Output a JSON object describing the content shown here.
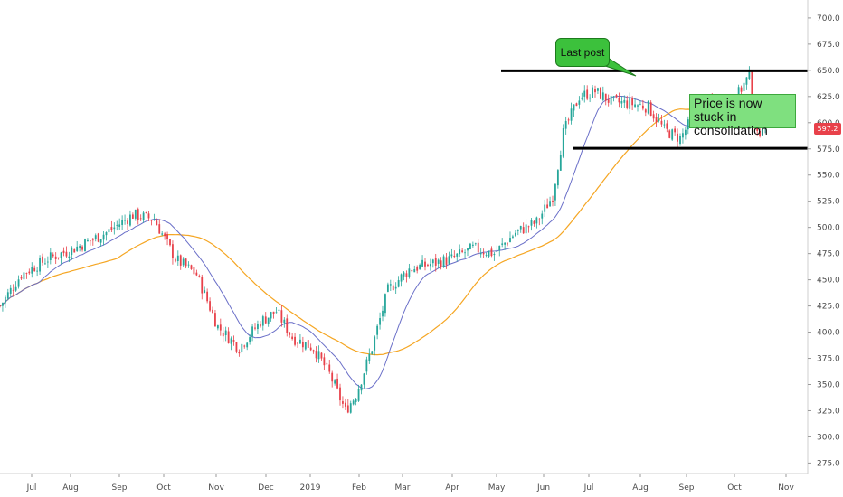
{
  "chart_data": {
    "type": "candlestick",
    "title": "",
    "ylim": [
      265,
      712
    ],
    "y_ticks": [
      "275.0",
      "300.0",
      "325.0",
      "350.0",
      "375.0",
      "400.0",
      "425.0",
      "450.0",
      "475.0",
      "500.0",
      "525.0",
      "550.0",
      "575.0",
      "600.0",
      "625.0",
      "650.0",
      "675.0",
      "700.0"
    ],
    "x_ticks": [
      "Jul",
      "Aug",
      "Sep",
      "Oct",
      "Nov",
      "Dec",
      "2019",
      "Feb",
      "Mar",
      "Apr",
      "May",
      "Jun",
      "Jul",
      "Aug",
      "Sep",
      "Oct",
      "Nov"
    ],
    "last_price": "597.2",
    "series": [
      {
        "name": "",
        "color": "#6a6fc8",
        "kind": "moving-average"
      },
      {
        "name": "",
        "color": "#f5a623",
        "kind": "moving-average"
      }
    ],
    "anchor_points": [
      {
        "t": 0,
        "p": 425
      },
      {
        "t": 20,
        "p": 455
      },
      {
        "t": 45,
        "p": 470
      },
      {
        "t": 70,
        "p": 480
      },
      {
        "t": 100,
        "p": 495
      },
      {
        "t": 125,
        "p": 512
      },
      {
        "t": 145,
        "p": 508
      },
      {
        "t": 165,
        "p": 470
      },
      {
        "t": 185,
        "p": 455
      },
      {
        "t": 205,
        "p": 405
      },
      {
        "t": 225,
        "p": 385
      },
      {
        "t": 245,
        "p": 410
      },
      {
        "t": 260,
        "p": 420
      },
      {
        "t": 275,
        "p": 395
      },
      {
        "t": 295,
        "p": 385
      },
      {
        "t": 310,
        "p": 360
      },
      {
        "t": 325,
        "p": 325
      },
      {
        "t": 335,
        "p": 340
      },
      {
        "t": 350,
        "p": 385
      },
      {
        "t": 365,
        "p": 440
      },
      {
        "t": 385,
        "p": 460
      },
      {
        "t": 405,
        "p": 465
      },
      {
        "t": 425,
        "p": 470
      },
      {
        "t": 445,
        "p": 480
      },
      {
        "t": 465,
        "p": 475
      },
      {
        "t": 485,
        "p": 495
      },
      {
        "t": 505,
        "p": 505
      },
      {
        "t": 520,
        "p": 530
      },
      {
        "t": 530,
        "p": 590
      },
      {
        "t": 545,
        "p": 625
      },
      {
        "t": 560,
        "p": 630
      },
      {
        "t": 575,
        "p": 620
      },
      {
        "t": 595,
        "p": 618
      },
      {
        "t": 610,
        "p": 615
      },
      {
        "t": 625,
        "p": 593
      },
      {
        "t": 640,
        "p": 585
      },
      {
        "t": 655,
        "p": 610
      },
      {
        "t": 670,
        "p": 618
      },
      {
        "t": 690,
        "p": 620
      },
      {
        "t": 705,
        "p": 645
      },
      {
        "t": 712,
        "p": 585
      },
      {
        "t": 722,
        "p": 610
      },
      {
        "t": 728,
        "p": 597
      }
    ],
    "lines": [
      {
        "label": "resistance",
        "price": 649.5,
        "from": "May",
        "to": "end"
      },
      {
        "label": "support",
        "price": 575.5,
        "from": "Jun",
        "to": "end"
      }
    ],
    "annotations": {
      "last_post": "Last post",
      "consolidation": "Price is now stuck in consolidation"
    }
  },
  "colors": {
    "up": "#26a69a",
    "down": "#e8414a",
    "ma_fast": "#6a6fc8",
    "ma_slow": "#f5a623",
    "callout_dark": "#3cc13c",
    "callout_light": "#7fe07f"
  }
}
